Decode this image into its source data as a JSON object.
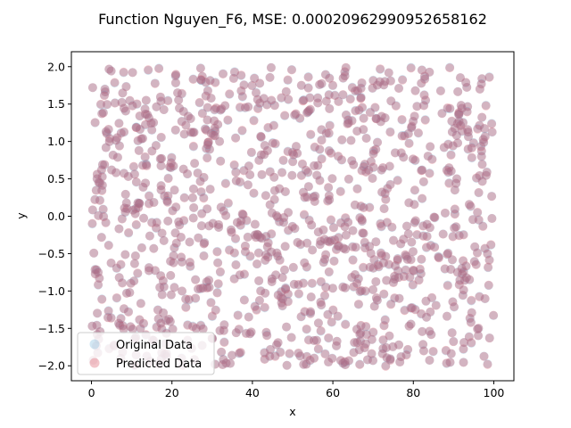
{
  "chart_data": {
    "type": "scatter",
    "title": "Function Nguyen_F6, MSE: 0.00020962990952658162",
    "xlabel": "x",
    "ylabel": "y",
    "xlim": [
      -5,
      105
    ],
    "ylim": [
      -2.2,
      2.2
    ],
    "xticks": [
      0,
      20,
      40,
      60,
      80,
      100
    ],
    "yticks": [
      -2.0,
      -1.5,
      -1.0,
      -0.5,
      0.0,
      0.5,
      1.0,
      1.5,
      2.0
    ],
    "xtick_labels": [
      "0",
      "20",
      "40",
      "60",
      "80",
      "100"
    ],
    "ytick_labels": [
      "−2.0",
      "−1.5",
      "−1.0",
      "−0.5",
      "0.0",
      "0.5",
      "1.0",
      "1.5",
      "2.0"
    ],
    "grid": false,
    "legend_position": "lower left",
    "num_points": 1000,
    "series": [
      {
        "name": "Original Data",
        "color": "#6baed6",
        "alpha": 0.3
      },
      {
        "name": "Predicted Data",
        "color": "#d6404e",
        "alpha": 0.3
      }
    ],
    "points": [
      [
        0.3,
        1.72
      ],
      [
        0.9,
        1.25
      ],
      [
        1.8,
        0.45
      ],
      [
        2.5,
        -0.28
      ],
      [
        3.2,
        1.62
      ],
      [
        4.1,
        -1.35
      ],
      [
        5.0,
        0.62
      ],
      [
        5.6,
        -1.72
      ],
      [
        6.4,
        1.05
      ],
      [
        7.3,
        -0.65
      ],
      [
        8.0,
        1.92
      ],
      [
        8.7,
        0.18
      ],
      [
        9.5,
        -1.02
      ],
      [
        10.2,
        1.48
      ],
      [
        11.0,
        -1.62
      ],
      [
        11.8,
        0.88
      ],
      [
        12.5,
        -0.42
      ],
      [
        13.4,
        1.22
      ],
      [
        14.1,
        1.95
      ],
      [
        15.0,
        -0.08
      ],
      [
        15.8,
        1.78
      ],
      [
        16.5,
        -1.25
      ],
      [
        17.3,
        0.35
      ],
      [
        18.2,
        -1.85
      ],
      [
        19.0,
        1.55
      ],
      [
        19.8,
        0.72
      ],
      [
        20.6,
        -0.95
      ],
      [
        21.4,
        1.65
      ],
      [
        22.3,
        -0.55
      ],
      [
        23.1,
        0.25
      ],
      [
        23.9,
        -1.45
      ],
      [
        24.7,
        1.12
      ],
      [
        25.6,
        -1.92
      ],
      [
        26.4,
        0.58
      ],
      [
        27.2,
        1.82
      ],
      [
        28.1,
        -0.35
      ],
      [
        28.9,
        0.95
      ],
      [
        29.7,
        -1.15
      ],
      [
        30.6,
        1.42
      ],
      [
        31.4,
        -0.62
      ],
      [
        32.2,
        0.12
      ],
      [
        33.0,
        -1.68
      ],
      [
        33.9,
        1.28
      ],
      [
        34.7,
        -0.18
      ],
      [
        35.5,
        0.68
      ],
      [
        36.4,
        -1.32
      ],
      [
        37.2,
        1.88
      ],
      [
        38.0,
        -0.78
      ],
      [
        38.9,
        0.42
      ],
      [
        39.7,
        -1.55
      ],
      [
        40.5,
        1.85
      ],
      [
        41.4,
        -0.25
      ],
      [
        42.2,
        0.82
      ],
      [
        43.0,
        -1.82
      ],
      [
        43.9,
        1.18
      ],
      [
        44.7,
        -0.48
      ],
      [
        45.5,
        0.22
      ],
      [
        46.4,
        -1.05
      ],
      [
        47.2,
        1.58
      ],
      [
        48.0,
        -0.72
      ],
      [
        48.9,
        0.05
      ],
      [
        49.7,
        -1.62
      ],
      [
        50.5,
        1.35
      ],
      [
        51.4,
        -0.92
      ],
      [
        52.2,
        0.55
      ],
      [
        53.0,
        -1.28
      ],
      [
        53.9,
        1.72
      ],
      [
        54.7,
        -0.12
      ],
      [
        55.5,
        0.92
      ],
      [
        56.4,
        -1.78
      ],
      [
        57.2,
        1.02
      ],
      [
        58.0,
        -0.58
      ],
      [
        58.9,
        0.38
      ],
      [
        59.7,
        -1.42
      ],
      [
        60.5,
        1.62
      ],
      [
        61.4,
        -0.28
      ],
      [
        62.2,
        0.75
      ],
      [
        63.0,
        -1.95
      ],
      [
        63.9,
        1.25
      ],
      [
        64.7,
        -0.82
      ],
      [
        65.5,
        0.15
      ],
      [
        66.4,
        -1.18
      ],
      [
        67.2,
        1.78
      ],
      [
        68.0,
        -0.42
      ],
      [
        68.9,
        0.62
      ],
      [
        69.7,
        -1.65
      ],
      [
        70.5,
        1.45
      ],
      [
        71.4,
        -0.68
      ],
      [
        72.2,
        0.32
      ],
      [
        73.0,
        -1.38
      ],
      [
        73.9,
        1.92
      ],
      [
        74.7,
        -0.15
      ],
      [
        75.5,
        0.85
      ],
      [
        76.4,
        -1.72
      ],
      [
        77.2,
        1.08
      ],
      [
        78.0,
        -0.52
      ],
      [
        78.9,
        0.18
      ],
      [
        79.7,
        -1.22
      ],
      [
        80.5,
        1.68
      ],
      [
        81.4,
        -0.85
      ]
    ]
  }
}
